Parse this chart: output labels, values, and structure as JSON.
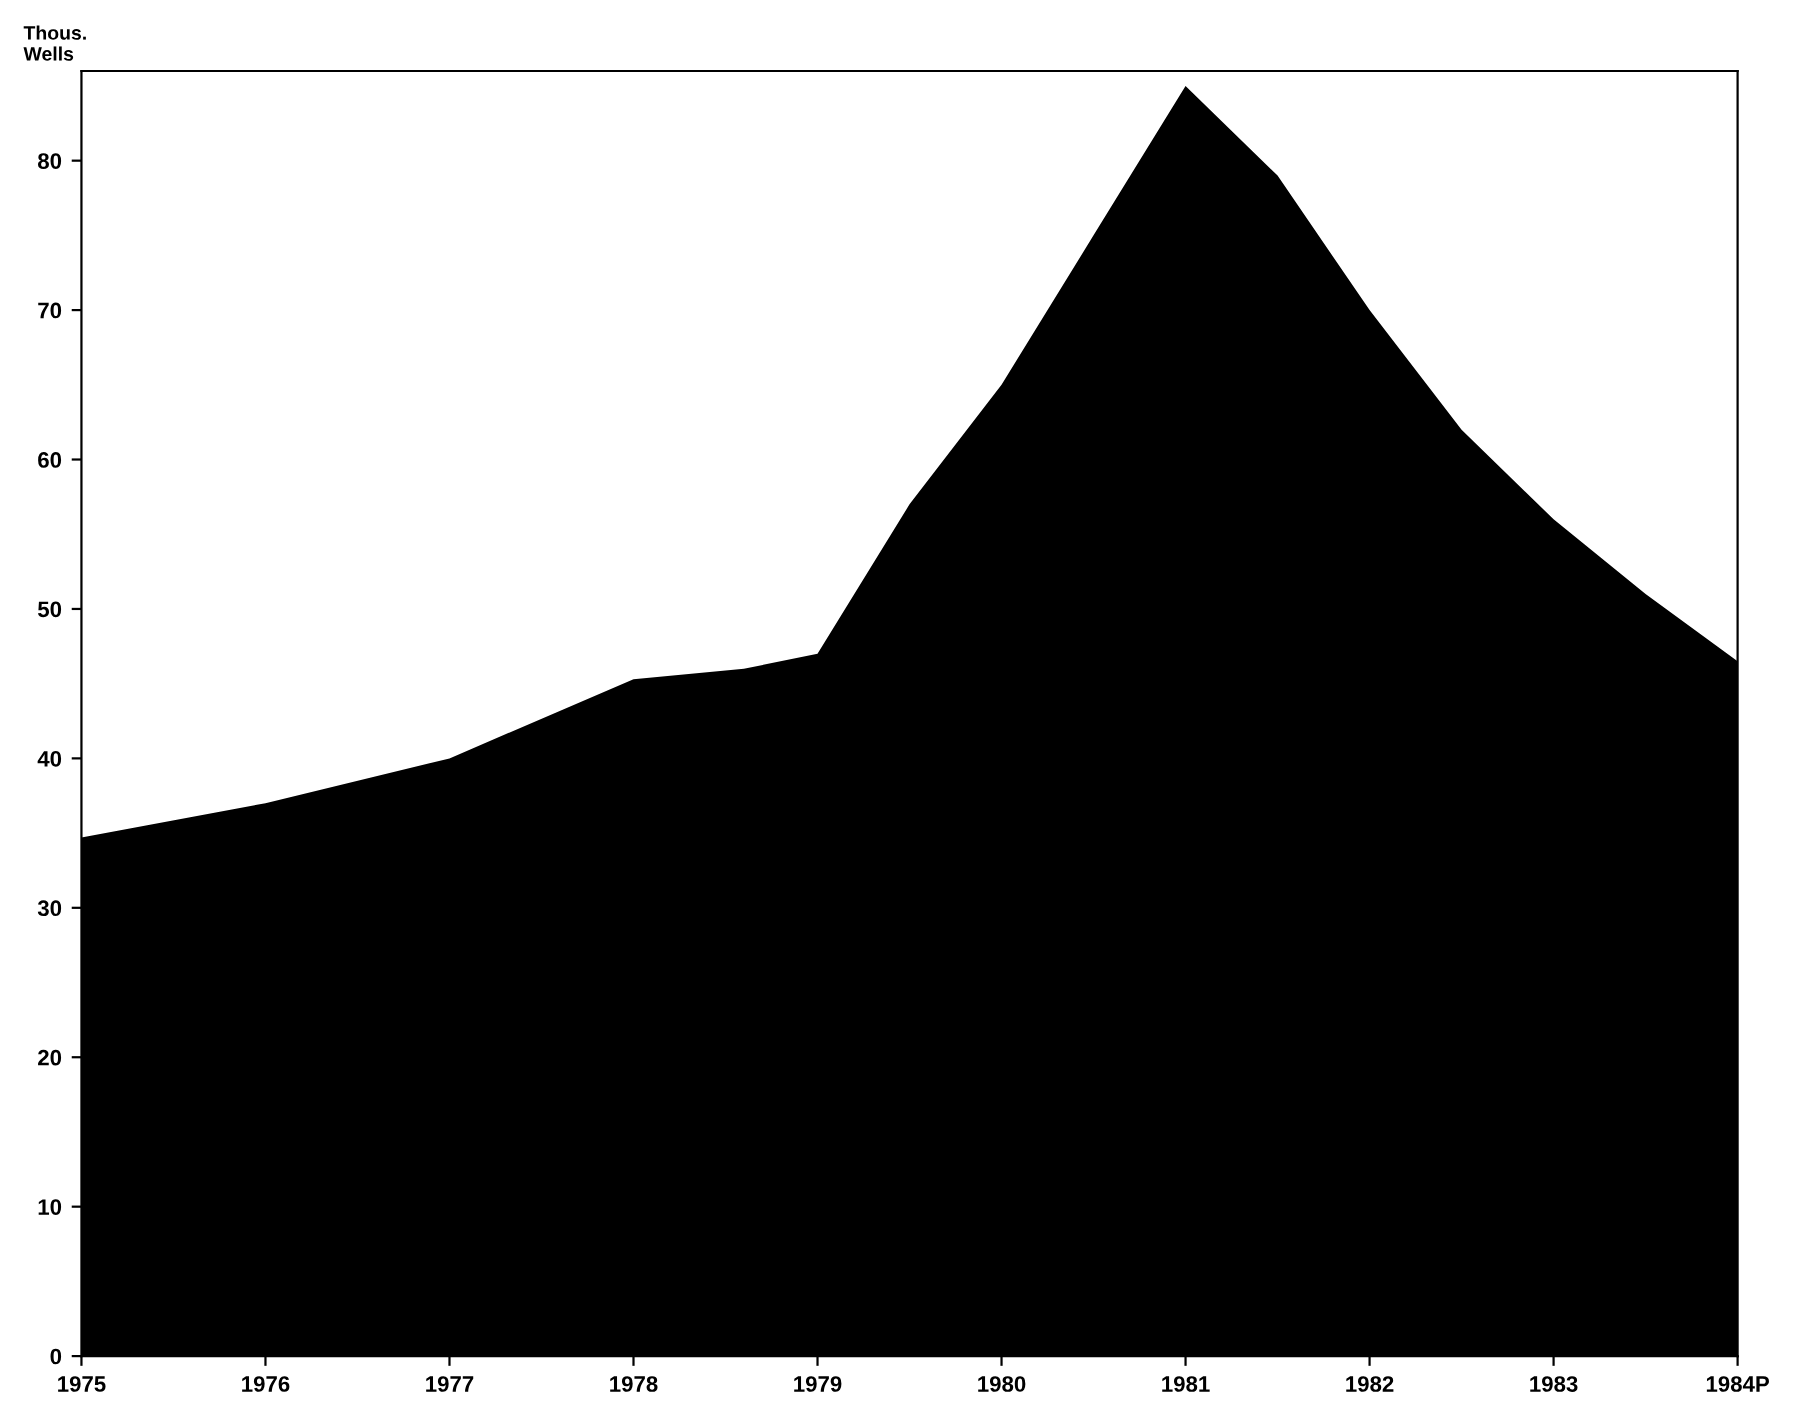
{
  "chart_data": {
    "type": "area",
    "ylabel": "Thous.\nWells",
    "x": [
      1975,
      1976,
      1977,
      1978,
      1978.6,
      1979,
      1979.5,
      1980,
      1980.5,
      1981,
      1981.5,
      1982,
      1982.5,
      1983,
      1983.5,
      1984
    ],
    "series": [
      {
        "color": "#000000",
        "values": [
          34.7,
          37,
          40,
          45.3,
          46,
          47,
          57,
          65,
          75,
          85,
          79,
          70,
          62,
          56,
          51,
          46.5
        ]
      }
    ],
    "xlim": [
      1975,
      1984
    ],
    "ylim": [
      0,
      86
    ],
    "xticks": [
      1975,
      1976,
      1977,
      1978,
      1979,
      1980,
      1981,
      1982,
      1983,
      {
        "value": 1984,
        "label": "1984P"
      }
    ],
    "yticks": [
      0,
      10,
      20,
      30,
      40,
      50,
      60,
      70,
      80
    ],
    "grid": false
  }
}
